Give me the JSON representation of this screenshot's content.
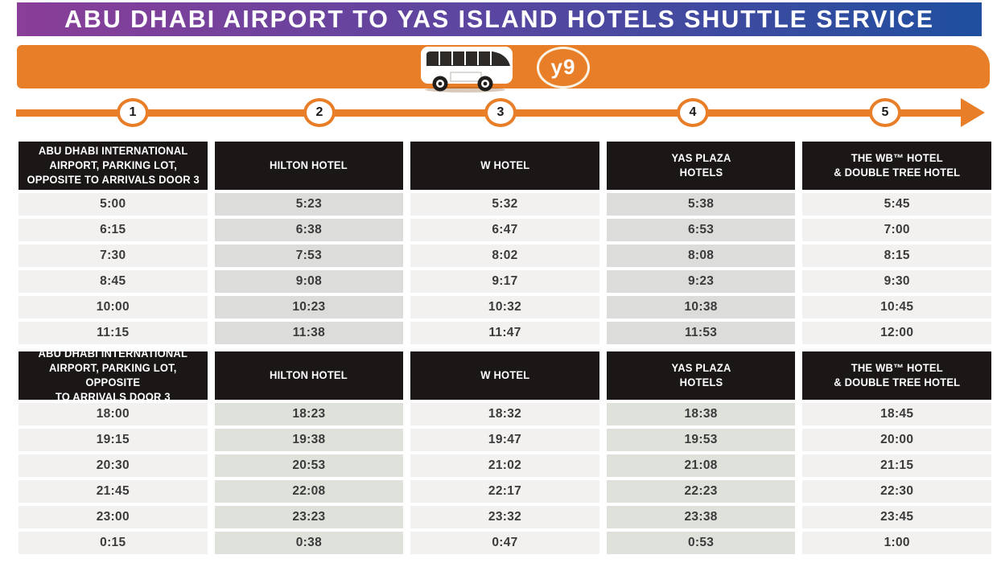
{
  "title": "ABU DHABI AIRPORT TO YAS ISLAND HOTELS SHUTTLE SERVICE",
  "banner": {
    "route_badge": "y9"
  },
  "icons": {
    "bus": "bus-icon",
    "route_arrow": "arrow-right-icon"
  },
  "route_line": {
    "stops": [
      "1",
      "2",
      "3",
      "4",
      "5"
    ]
  },
  "colors": {
    "banner_purple": "#8A3E98",
    "banner_blue": "#1F4F9F",
    "accent_orange": "#E87E27",
    "table_header_bg": "#1B1717",
    "cell_light": "#F2F1EF",
    "cell_shaded_am": "#DCDCDA",
    "cell_shaded_pm": "#DFE2DB",
    "time_text": "#3B3B3B"
  },
  "tables": [
    {
      "columns": [
        "ABU DHABI INTERNATIONAL\nAIRPORT, PARKING LOT,\nOPPOSITE TO  ARRIVALS DOOR 3",
        "HILTON HOTEL",
        "W HOTEL",
        "YAS PLAZA\nHOTELS",
        "THE WB™ HOTEL\n& DOUBLE TREE HOTEL"
      ],
      "rows": [
        [
          "5:00",
          "5:23",
          "5:32",
          "5:38",
          "5:45"
        ],
        [
          "6:15",
          "6:38",
          "6:47",
          "6:53",
          "7:00"
        ],
        [
          "7:30",
          "7:53",
          "8:02",
          "8:08",
          "8:15"
        ],
        [
          "8:45",
          "9:08",
          "9:17",
          "9:23",
          "9:30"
        ],
        [
          "10:00",
          "10:23",
          "10:32",
          "10:38",
          "10:45"
        ],
        [
          "11:15",
          "11:38",
          "11:47",
          "11:53",
          "12:00"
        ]
      ]
    },
    {
      "columns": [
        "ABU DHABI INTERNATIONAL\nAIRPORT, PARKING LOT, OPPOSITE\nTO ARRIVALS DOOR 3",
        "HILTON HOTEL",
        "W HOTEL",
        "YAS PLAZA\nHOTELS",
        "THE WB™ HOTEL\n& DOUBLE TREE HOTEL"
      ],
      "rows": [
        [
          "18:00",
          "18:23",
          "18:32",
          "18:38",
          "18:45"
        ],
        [
          "19:15",
          "19:38",
          "19:47",
          "19:53",
          "20:00"
        ],
        [
          "20:30",
          "20:53",
          "21:02",
          "21:08",
          "21:15"
        ],
        [
          "21:45",
          "22:08",
          "22:17",
          "22:23",
          "22:30"
        ],
        [
          "23:00",
          "23:23",
          "23:32",
          "23:38",
          "23:45"
        ],
        [
          "0:15",
          "0:38",
          "0:47",
          "0:53",
          "1:00"
        ]
      ]
    }
  ]
}
